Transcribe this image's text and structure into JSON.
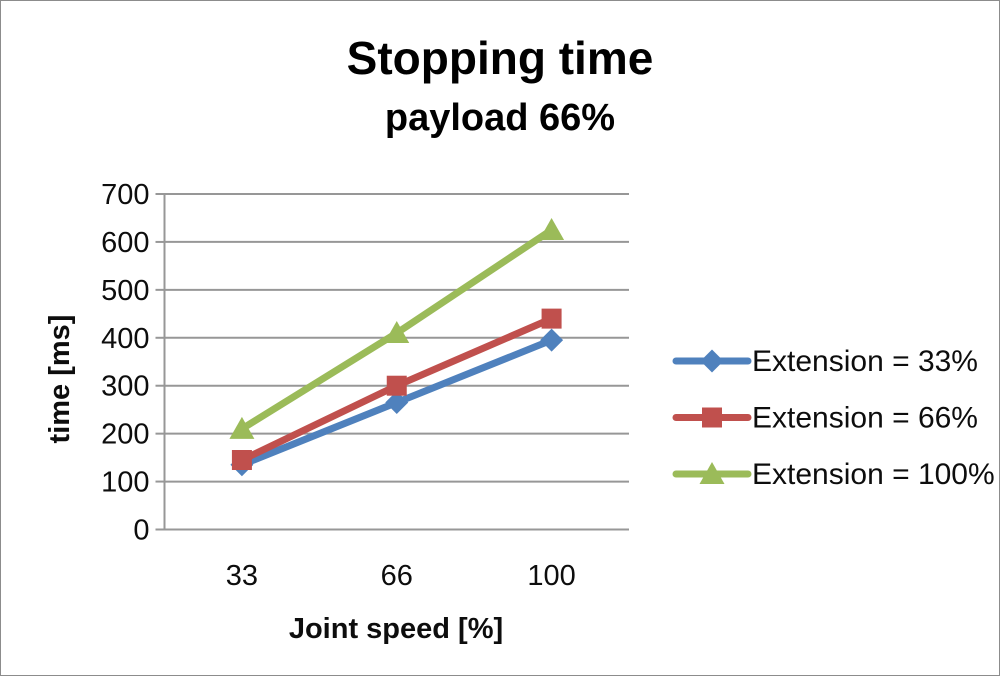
{
  "figure": {
    "title": "Stopping time",
    "subtitle": "payload 66%"
  },
  "chart_data": {
    "type": "line",
    "title": "Stopping time",
    "subtitle": "payload 66%",
    "xlabel": "Joint speed [%]",
    "ylabel": "time [ms]",
    "categories": [
      "33",
      "66",
      "100"
    ],
    "series": [
      {
        "name": "Extension = 33%",
        "marker": "diamond",
        "color": "#4F81BD",
        "values": [
          135,
          265,
          395
        ]
      },
      {
        "name": "Extension = 66%",
        "marker": "square",
        "color": "#C0504D",
        "values": [
          145,
          300,
          440
        ]
      },
      {
        "name": "Extension = 100%",
        "marker": "triangle",
        "color": "#9BBB59",
        "values": [
          210,
          410,
          625
        ]
      }
    ],
    "ylim": [
      0,
      700
    ],
    "yticks": [
      0,
      100,
      200,
      300,
      400,
      500,
      600,
      700
    ],
    "grid": true,
    "legend_position": "right",
    "colors": {
      "axis": "#979797",
      "grid": "#979797",
      "text": "#0d0d0d"
    }
  }
}
